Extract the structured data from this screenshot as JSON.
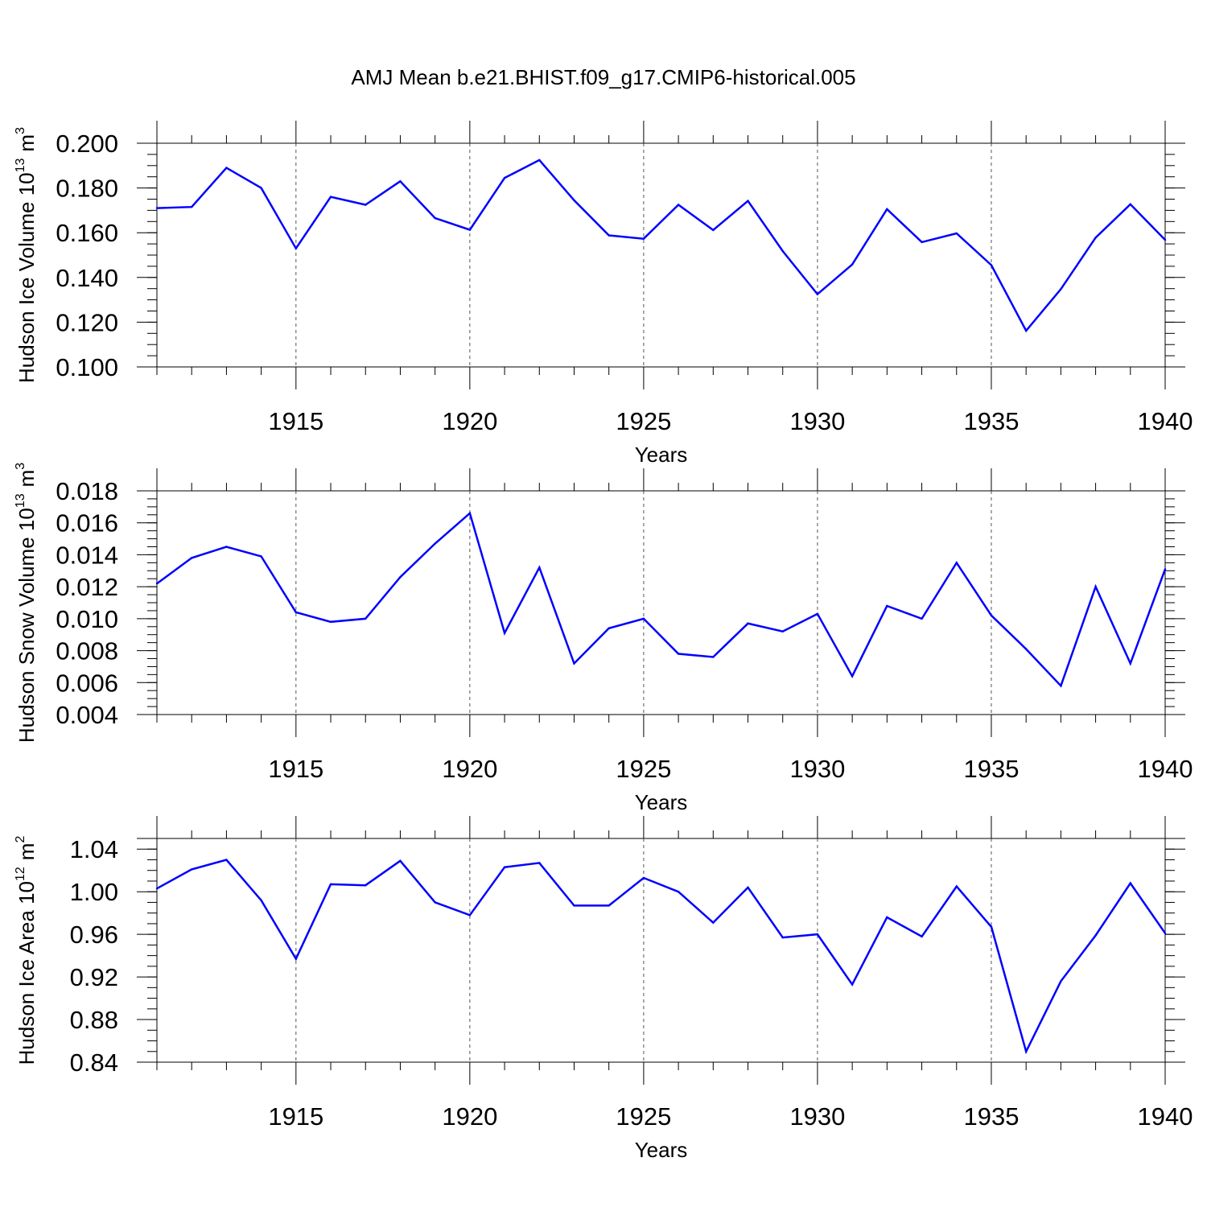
{
  "title": "AMJ Mean b.e21.BHIST.f09_g17.CMIP6-historical.005",
  "chart_data": [
    {
      "type": "line",
      "title": "AMJ Mean b.e21.BHIST.f09_g17.CMIP6-historical.005",
      "ylabel_main": "Hudson Ice Volume 10",
      "ylabel_exp": "13",
      "ylabel_unit": "m",
      "ylabel_unit_exp": "3",
      "xlabel": "Years",
      "xlim": [
        1911,
        1940
      ],
      "ylim": [
        0.1,
        0.2
      ],
      "yticks": [
        0.1,
        0.12,
        0.14,
        0.16,
        0.18,
        0.2
      ],
      "ytick_labels": [
        "0.100",
        "0.120",
        "0.140",
        "0.160",
        "0.180",
        "0.200"
      ],
      "yminor_step": 0.005,
      "xticks": [
        1915,
        1920,
        1925,
        1930,
        1935,
        1940
      ],
      "xtick_labels": [
        "1915",
        "1920",
        "1925",
        "1930",
        "1935",
        "1940"
      ],
      "line_color": "#0000ff",
      "series": [
        {
          "name": "Hudson Ice Volume",
          "x": [
            1911,
            1912,
            1913,
            1914,
            1915,
            1916,
            1917,
            1918,
            1919,
            1920,
            1921,
            1922,
            1923,
            1924,
            1925,
            1926,
            1927,
            1928,
            1929,
            1930,
            1931,
            1932,
            1933,
            1934,
            1935,
            1936,
            1937,
            1938,
            1939,
            1940
          ],
          "values": [
            0.171,
            0.1715,
            0.189,
            0.18,
            0.153,
            0.176,
            0.1725,
            0.183,
            0.1665,
            0.1613,
            0.1845,
            0.1925,
            0.1745,
            0.1588,
            0.1573,
            0.1725,
            0.1612,
            0.1742,
            0.1518,
            0.1325,
            0.1458,
            0.1705,
            0.1558,
            0.1597,
            0.1455,
            0.1162,
            0.1348,
            0.1578,
            0.1727,
            0.1568
          ]
        }
      ]
    },
    {
      "type": "line",
      "ylabel_main": "Hudson Snow Volume 10",
      "ylabel_exp": "13",
      "ylabel_unit": "m",
      "ylabel_unit_exp": "3",
      "xlabel": "Years",
      "xlim": [
        1911,
        1940
      ],
      "ylim": [
        0.004,
        0.018
      ],
      "yticks": [
        0.004,
        0.006,
        0.008,
        0.01,
        0.012,
        0.014,
        0.016,
        0.018
      ],
      "ytick_labels": [
        "0.004",
        "0.006",
        "0.008",
        "0.010",
        "0.012",
        "0.014",
        "0.016",
        "0.018"
      ],
      "yminor_step": 0.0005,
      "xticks": [
        1915,
        1920,
        1925,
        1930,
        1935,
        1940
      ],
      "xtick_labels": [
        "1915",
        "1920",
        "1925",
        "1930",
        "1935",
        "1940"
      ],
      "line_color": "#0000ff",
      "series": [
        {
          "name": "Hudson Snow Volume",
          "x": [
            1911,
            1912,
            1913,
            1914,
            1915,
            1916,
            1917,
            1918,
            1919,
            1920,
            1921,
            1922,
            1923,
            1924,
            1925,
            1926,
            1927,
            1928,
            1929,
            1930,
            1931,
            1932,
            1933,
            1934,
            1935,
            1936,
            1937,
            1938,
            1939,
            1940
          ],
          "values": [
            0.0122,
            0.0138,
            0.0145,
            0.0139,
            0.0104,
            0.0098,
            0.01,
            0.0126,
            0.0147,
            0.0166,
            0.0091,
            0.0132,
            0.0072,
            0.0094,
            0.01,
            0.0078,
            0.0076,
            0.0097,
            0.0092,
            0.0103,
            0.0064,
            0.0108,
            0.01,
            0.0135,
            0.0102,
            0.0081,
            0.0058,
            0.012,
            0.0072,
            0.0131
          ]
        }
      ]
    },
    {
      "type": "line",
      "ylabel_main": "Hudson Ice Area 10",
      "ylabel_exp": "12",
      "ylabel_unit": "m",
      "ylabel_unit_exp": "2",
      "xlabel": "Years",
      "xlim": [
        1911,
        1940
      ],
      "ylim": [
        0.84,
        1.05
      ],
      "yticks": [
        0.84,
        0.88,
        0.92,
        0.96,
        1.0,
        1.04
      ],
      "ytick_labels": [
        "0.84",
        "0.88",
        "0.92",
        "0.96",
        "1.00",
        "1.04"
      ],
      "yminor_step": 0.01,
      "xticks": [
        1915,
        1920,
        1925,
        1930,
        1935,
        1940
      ],
      "xtick_labels": [
        "1915",
        "1920",
        "1925",
        "1930",
        "1935",
        "1940"
      ],
      "line_color": "#0000ff",
      "series": [
        {
          "name": "Hudson Ice Area",
          "x": [
            1911,
            1912,
            1913,
            1914,
            1915,
            1916,
            1917,
            1918,
            1919,
            1920,
            1921,
            1922,
            1923,
            1924,
            1925,
            1926,
            1927,
            1928,
            1929,
            1930,
            1931,
            1932,
            1933,
            1934,
            1935,
            1936,
            1937,
            1938,
            1939,
            1940
          ],
          "values": [
            1.003,
            1.021,
            1.03,
            0.992,
            0.937,
            1.007,
            1.006,
            1.029,
            0.99,
            0.978,
            1.023,
            1.027,
            0.987,
            0.987,
            1.013,
            1.0,
            0.971,
            1.004,
            0.957,
            0.96,
            0.913,
            0.976,
            0.958,
            1.005,
            0.967,
            0.85,
            0.916,
            0.959,
            1.008,
            0.961
          ]
        }
      ]
    }
  ]
}
